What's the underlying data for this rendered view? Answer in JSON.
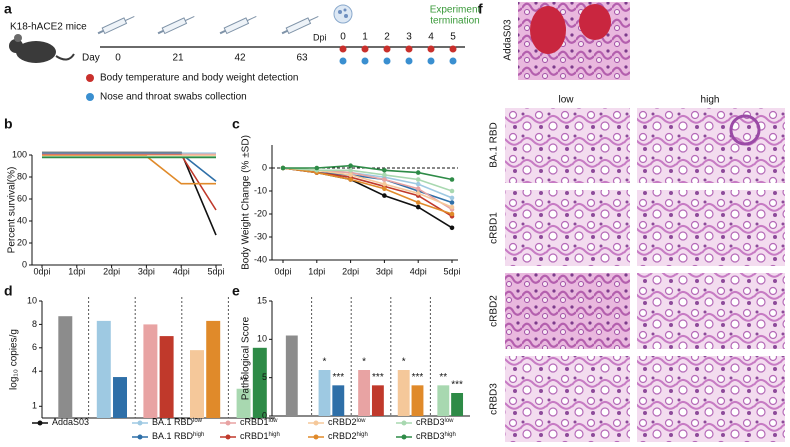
{
  "panel_a": {
    "label": "a",
    "mouse": "K18-hACE2 mice",
    "day_label": "Day",
    "days": [
      0,
      21,
      42,
      63
    ],
    "dpi_label": "Dpi",
    "dpi": [
      0,
      1,
      2,
      3,
      4,
      5
    ],
    "termination": [
      "Experiment",
      "termination"
    ],
    "legend": [
      {
        "text": "Body temperature and body weight detection",
        "color": "#c9302c"
      },
      {
        "text": "Nose and throat swabs collection",
        "color": "#3a8fd0"
      }
    ]
  },
  "legend": [
    {
      "name": "AddaS03",
      "color": "#111111"
    },
    {
      "name": "BA.1 RBD",
      "sup": "low",
      "color": "#9ec9e2"
    },
    {
      "name": "BA.1 RBD",
      "sup": "high",
      "color": "#2e6fa8"
    },
    {
      "name": "cRBD1",
      "sup": "low",
      "color": "#e8a3a3"
    },
    {
      "name": "cRBD1",
      "sup": "high",
      "color": "#c0392b"
    },
    {
      "name": "cRBD2",
      "sup": "low",
      "color": "#f5c89a"
    },
    {
      "name": "cRBD2",
      "sup": "high",
      "color": "#e08a2a"
    },
    {
      "name": "cRBD3",
      "sup": "low",
      "color": "#a8d8b0"
    },
    {
      "name": "cRBD3",
      "sup": "high",
      "color": "#2e8b47"
    }
  ],
  "chart_data": [
    {
      "panel": "b",
      "type": "line",
      "y_label": "Percent survival(%)",
      "categories": [
        "0dpi",
        "1dpi",
        "2dpi",
        "3dpi",
        "4dpi",
        "5dpi"
      ],
      "ylim": [
        0,
        100
      ],
      "yticks": [
        0,
        20,
        40,
        60,
        80,
        100
      ],
      "series": [
        {
          "values": [
            100,
            100,
            100,
            100,
            100,
            25
          ]
        },
        {
          "values": [
            100,
            100,
            100,
            100,
            100,
            100
          ]
        },
        {
          "values": [
            100,
            100,
            100,
            100,
            100,
            75
          ]
        },
        {
          "values": [
            100,
            100,
            100,
            100,
            100,
            100
          ]
        },
        {
          "values": [
            100,
            100,
            100,
            100,
            100,
            50
          ]
        },
        {
          "values": [
            100,
            100,
            100,
            100,
            100,
            100
          ]
        },
        {
          "values": [
            100,
            100,
            100,
            100,
            75,
            75
          ]
        },
        {
          "values": [
            100,
            100,
            100,
            100,
            100,
            100
          ]
        },
        {
          "values": [
            100,
            100,
            100,
            100,
            100,
            100
          ]
        }
      ]
    },
    {
      "panel": "c",
      "type": "line",
      "y_label": "Body Weight Change (% ±SD)",
      "categories": [
        "0dpi",
        "1dpi",
        "2dpi",
        "3dpi",
        "4dpi",
        "5dpi"
      ],
      "ylim": [
        -40,
        10
      ],
      "yticks": [
        -40,
        -30,
        -20,
        -10,
        0
      ],
      "hline": 0,
      "markers": true,
      "series": [
        {
          "values": [
            0,
            -2,
            -5,
            -12,
            -17,
            -26
          ]
        },
        {
          "values": [
            0,
            -1,
            -2,
            -4,
            -7,
            -13
          ]
        },
        {
          "values": [
            0,
            -2,
            -3,
            -5,
            -10,
            -15
          ]
        },
        {
          "values": [
            0,
            -1,
            -2,
            -5,
            -9,
            -18
          ]
        },
        {
          "values": [
            0,
            -2,
            -4,
            -8,
            -12,
            -21
          ]
        },
        {
          "values": [
            0,
            -1,
            -3,
            -7,
            -11,
            -17
          ]
        },
        {
          "values": [
            0,
            -2,
            -5,
            -9,
            -15,
            -20
          ]
        },
        {
          "values": [
            0,
            -1,
            -1,
            -3,
            -5,
            -10
          ]
        },
        {
          "values": [
            0,
            0,
            1,
            -1,
            -2,
            -5
          ]
        }
      ]
    },
    {
      "panel": "d",
      "type": "bar",
      "y_label": "log₁₀ copies/g",
      "categories": [
        null,
        null,
        null,
        null,
        null,
        null,
        null,
        null,
        null
      ],
      "values": [
        8.7,
        8.3,
        3.5,
        8.0,
        7.0,
        5.8,
        8.3,
        2.5,
        6.0
      ],
      "colors": [
        "#8c8c8c",
        "#9ec9e2",
        "#2e6fa8",
        "#e8a3a3",
        "#c0392b",
        "#f5c89a",
        "#e08a2a",
        "#a8d8b0",
        "#2e8b47"
      ],
      "significance": [
        null,
        null,
        null,
        null,
        null,
        null,
        null,
        "**",
        null
      ],
      "ylim": [
        0,
        10
      ],
      "yticks": [
        1,
        4,
        6,
        8,
        10
      ]
    },
    {
      "panel": "e",
      "type": "bar",
      "y_label": "Pathological Score",
      "categories": [
        null,
        null,
        null,
        null,
        null,
        null,
        null,
        null,
        null
      ],
      "values": [
        10.5,
        6,
        4,
        6,
        4,
        6,
        4,
        4,
        3
      ],
      "colors": [
        "#8c8c8c",
        "#9ec9e2",
        "#2e6fa8",
        "#e8a3a3",
        "#c0392b",
        "#f5c89a",
        "#e08a2a",
        "#a8d8b0",
        "#2e8b47"
      ],
      "significance": [
        null,
        "*",
        "***",
        "*",
        "***",
        "*",
        "***",
        "**",
        "***"
      ],
      "ylim": [
        0,
        15
      ],
      "yticks": [
        0,
        5,
        10,
        15
      ]
    }
  ],
  "panel_f": {
    "label": "f",
    "top": "AddaS03",
    "columns": [
      "low",
      "high"
    ],
    "rows": [
      "BA.1 RBD",
      "cRBD1",
      "cRBD2",
      "cRBD3"
    ]
  }
}
